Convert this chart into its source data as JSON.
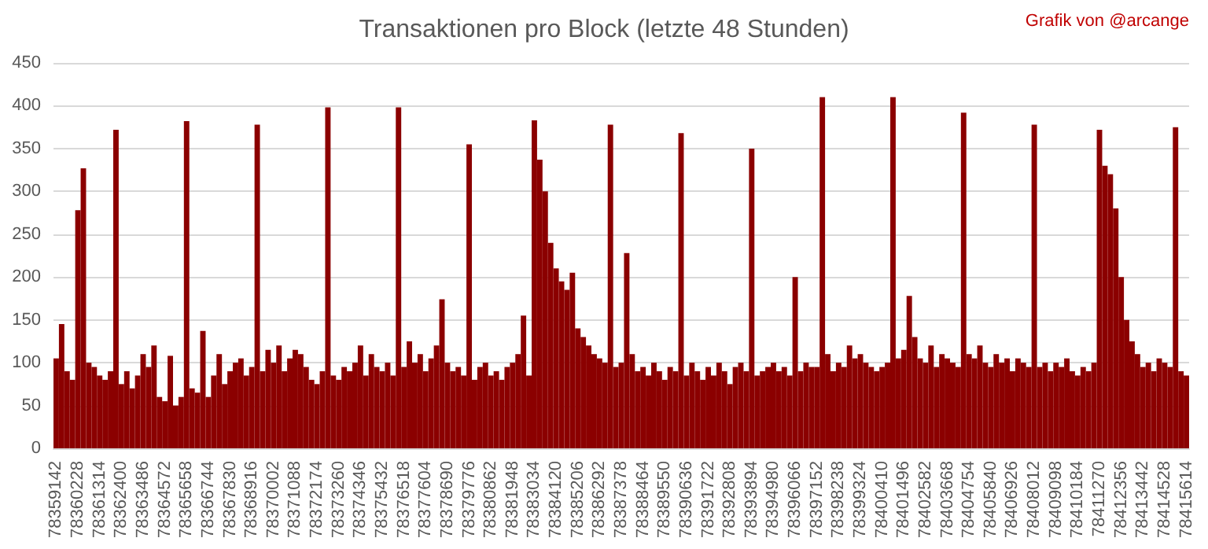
{
  "chart_data": {
    "type": "bar",
    "title": "Transaktionen pro Block (letzte 48 Stunden)",
    "annotations": [
      "Grafik von @arcange"
    ],
    "categories": [
      "78359142",
      null,
      null,
      null,
      "78360228",
      null,
      null,
      null,
      "78361314",
      null,
      null,
      null,
      "78362400",
      null,
      null,
      null,
      "78363486",
      null,
      null,
      null,
      "78364572",
      null,
      null,
      null,
      "78365658",
      null,
      null,
      null,
      "78366744",
      null,
      null,
      null,
      "78367830",
      null,
      null,
      null,
      "78368916",
      null,
      null,
      null,
      "78370002",
      null,
      null,
      null,
      "78371088",
      null,
      null,
      null,
      "78372174",
      null,
      null,
      null,
      "78373260",
      null,
      null,
      null,
      "78374346",
      null,
      null,
      null,
      "78375432",
      null,
      null,
      null,
      "78376518",
      null,
      null,
      null,
      "78377604",
      null,
      null,
      null,
      "78378690",
      null,
      null,
      null,
      "78379776",
      null,
      null,
      null,
      "78380862",
      null,
      null,
      null,
      "78381948",
      null,
      null,
      null,
      "78383034",
      null,
      null,
      null,
      "78384120",
      null,
      null,
      null,
      "78385206",
      null,
      null,
      null,
      "78386292",
      null,
      null,
      null,
      "78387378",
      null,
      null,
      null,
      "78388464",
      null,
      null,
      null,
      "78389550",
      null,
      null,
      null,
      "78390636",
      null,
      null,
      null,
      "78391722",
      null,
      null,
      null,
      "78392808",
      null,
      null,
      null,
      "78393894",
      null,
      null,
      null,
      "78394980",
      null,
      null,
      null,
      "78396066",
      null,
      null,
      null,
      "78397152",
      null,
      null,
      null,
      "78398238",
      null,
      null,
      null,
      "78399324",
      null,
      null,
      null,
      "78400410",
      null,
      null,
      null,
      "78401496",
      null,
      null,
      null,
      "78402582",
      null,
      null,
      null,
      "78403668",
      null,
      null,
      null,
      "78404754",
      null,
      null,
      null,
      "78405840",
      null,
      null,
      null,
      "78406926",
      null,
      null,
      null,
      "78408012",
      null,
      null,
      null,
      "78409098",
      null,
      null,
      null,
      "78410184",
      null,
      null,
      null,
      "78411270",
      null,
      null,
      null,
      "78412356",
      null,
      null,
      null,
      "78413442",
      null,
      null,
      null,
      "78414528",
      null,
      null,
      null,
      "78415614"
    ],
    "values": [
      105,
      145,
      90,
      80,
      278,
      327,
      100,
      95,
      85,
      80,
      90,
      372,
      75,
      90,
      70,
      85,
      110,
      95,
      120,
      60,
      55,
      108,
      50,
      60,
      382,
      70,
      65,
      137,
      60,
      85,
      110,
      75,
      90,
      100,
      105,
      85,
      95,
      378,
      90,
      115,
      100,
      120,
      90,
      105,
      115,
      110,
      95,
      80,
      75,
      90,
      398,
      85,
      80,
      95,
      90,
      100,
      120,
      85,
      110,
      95,
      90,
      100,
      85,
      398,
      95,
      125,
      100,
      110,
      90,
      105,
      120,
      174,
      100,
      90,
      95,
      85,
      355,
      80,
      95,
      100,
      85,
      90,
      80,
      95,
      100,
      110,
      155,
      85,
      383,
      337,
      300,
      240,
      210,
      195,
      185,
      205,
      140,
      130,
      120,
      110,
      105,
      100,
      378,
      95,
      100,
      228,
      110,
      90,
      95,
      85,
      100,
      90,
      80,
      95,
      90,
      368,
      85,
      100,
      90,
      80,
      95,
      85,
      100,
      90,
      75,
      95,
      100,
      90,
      350,
      85,
      90,
      95,
      100,
      90,
      95,
      85,
      200,
      90,
      100,
      95,
      95,
      410,
      110,
      90,
      100,
      95,
      120,
      105,
      110,
      100,
      95,
      90,
      95,
      100,
      410,
      105,
      115,
      178,
      130,
      105,
      100,
      120,
      95,
      110,
      105,
      100,
      95,
      392,
      110,
      105,
      120,
      100,
      95,
      110,
      100,
      105,
      90,
      105,
      100,
      95,
      378,
      95,
      100,
      90,
      100,
      95,
      105,
      90,
      85,
      95,
      90,
      100,
      372,
      330,
      320,
      280,
      200,
      150,
      125,
      110,
      95,
      100,
      90,
      105,
      100,
      95,
      375,
      90,
      85
    ],
    "color": "#8b0000",
    "ylim": [
      0,
      450
    ],
    "yticks": [
      0,
      50,
      100,
      150,
      200,
      250,
      300,
      350,
      400,
      450
    ],
    "grid": "y"
  }
}
